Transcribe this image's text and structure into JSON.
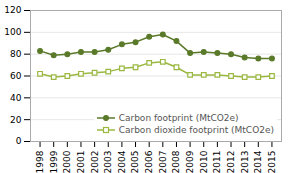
{
  "chart_data": {
    "type": "line",
    "x": [
      1998,
      1999,
      2000,
      2001,
      2002,
      2003,
      2004,
      2005,
      2006,
      2007,
      2008,
      2009,
      2010,
      2011,
      2012,
      2013,
      2014,
      2015
    ],
    "series": [
      {
        "name": "Carbon footprint (MtCO2e)",
        "color": "#5a7a2a",
        "marker": "circle",
        "values": [
          83,
          79,
          80,
          82,
          82,
          84,
          89,
          91,
          96,
          98,
          92,
          81,
          82,
          81,
          80,
          77,
          76,
          76
        ]
      },
      {
        "name": "Carbon dioxide footprint (MtCO2e)",
        "color": "#9ab840",
        "marker": "square",
        "values": [
          62,
          59,
          60,
          62,
          63,
          64,
          67,
          68,
          72,
          73,
          68,
          61,
          61,
          61,
          60,
          59,
          59,
          60
        ]
      }
    ],
    "xlim": [
      1997.3,
      2015.7
    ],
    "xticks": [
      1998,
      1999,
      2000,
      2001,
      2002,
      2003,
      2004,
      2005,
      2006,
      2007,
      2008,
      2009,
      2010,
      2011,
      2012,
      2013,
      2014,
      2015
    ],
    "ylim": [
      0,
      120
    ],
    "yticks": [
      0,
      20,
      40,
      60,
      80,
      100,
      120
    ],
    "grid": true,
    "legend": "lower right"
  }
}
